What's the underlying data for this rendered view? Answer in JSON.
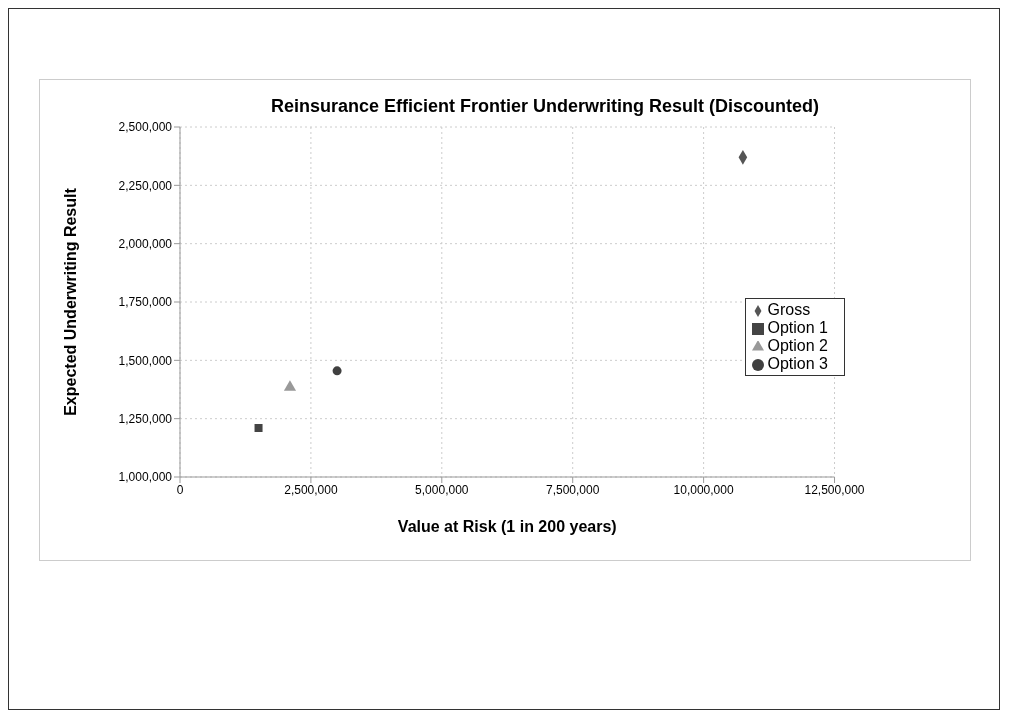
{
  "chart_data": {
    "type": "scatter",
    "title": "Reinsurance Efficient Frontier Underwriting Result (Discounted)",
    "xlabel": "Value at Risk (1 in 200 years)",
    "ylabel": "Expected Underwriting Result",
    "series": [
      {
        "name": "Gross",
        "color": "#555555",
        "marker": "diamond",
        "x": [
          10750000
        ],
        "values": [
          2370000
        ]
      },
      {
        "name": "Option 1",
        "color": "#444444",
        "marker": "square",
        "x": [
          1500000
        ],
        "values": [
          1210000
        ]
      },
      {
        "name": "Option 2",
        "color": "#999999",
        "marker": "triangle",
        "x": [
          2100000
        ],
        "values": [
          1385000
        ]
      },
      {
        "name": "Option 3",
        "color": "#404040",
        "marker": "circle",
        "x": [
          3000000
        ],
        "values": [
          1455000
        ]
      }
    ],
    "xlim": [
      0,
      12500000
    ],
    "xticks": [
      0,
      {
        "value": 2500000,
        "label": "2,500,000"
      },
      {
        "value": 5000000,
        "label": "5,000,000"
      },
      {
        "value": 7500000,
        "label": "7,500,000"
      },
      {
        "value": 10000000,
        "label": "10,000,000"
      },
      {
        "value": 12500000,
        "label": "12,500,000"
      }
    ],
    "ylim": [
      1000000,
      2500000
    ],
    "yticks": [
      {
        "value": 1000000,
        "label": "1,000,000"
      },
      {
        "value": 1250000,
        "label": "1,250,000"
      },
      {
        "value": 1500000,
        "label": "1,500,000"
      },
      {
        "value": 1750000,
        "label": "1,750,000"
      },
      {
        "value": 2000000,
        "label": "2,000,000"
      },
      {
        "value": 2250000,
        "label": "2,250,000"
      },
      {
        "value": 2500000,
        "label": "2,500,000"
      }
    ],
    "grid": true,
    "legend": "right"
  }
}
